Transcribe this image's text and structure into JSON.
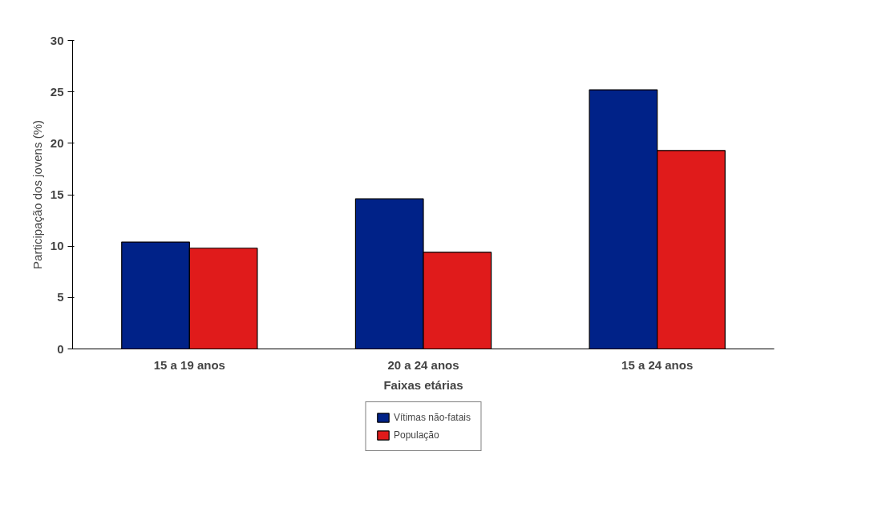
{
  "chart_data": {
    "type": "bar",
    "xlabel": "Faixas etárias",
    "ylabel": "Participação dos jovens (%)",
    "categories": [
      "15 a 19 anos",
      "20 a 24 anos",
      "15 a 24 anos"
    ],
    "series": [
      {
        "name": "Vítimas não-fatais",
        "color": "#002288",
        "values": [
          10.4,
          14.6,
          25.2
        ]
      },
      {
        "name": "População",
        "color": "#e01b1b",
        "values": [
          9.8,
          9.4,
          19.3
        ]
      }
    ],
    "ylim": [
      0,
      30
    ],
    "yticks": [
      0,
      5,
      10,
      15,
      20,
      25,
      30
    ],
    "grid": false,
    "legend": "bottom"
  }
}
